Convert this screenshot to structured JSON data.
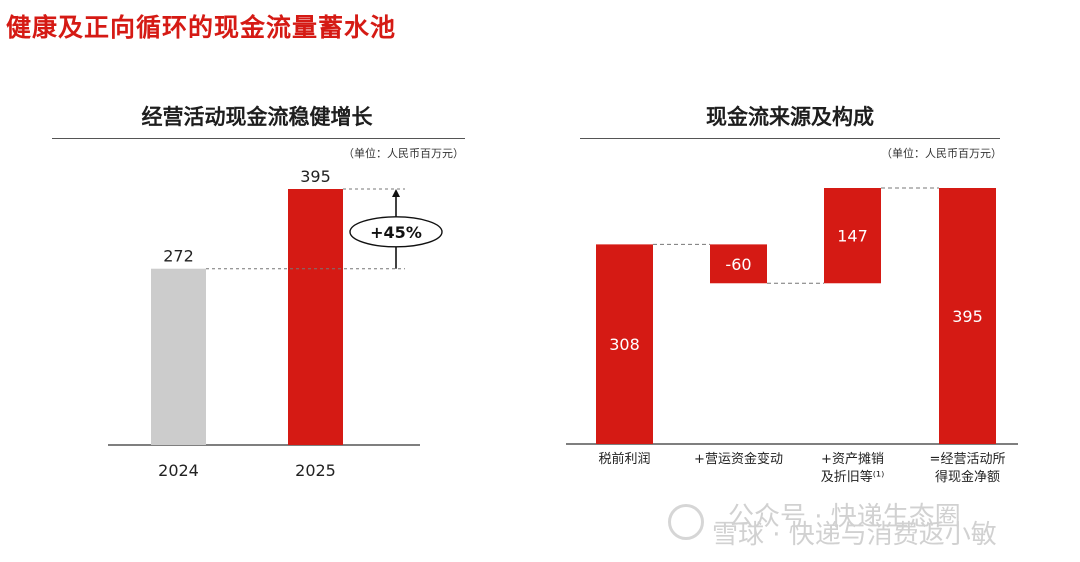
{
  "page": {
    "title": "健康及正向循环的现金流量蓄水池"
  },
  "left_panel": {
    "title": "经营活动现金流稳健增长",
    "unit": "（单位：人民币百万元）"
  },
  "right_panel": {
    "title": "现金流来源及构成",
    "unit": "（单位：人民币百万元）"
  },
  "watermark": {
    "line1": "公众号 · 快递生态圈",
    "line2": "雪球 · 快递与消费返小敏"
  },
  "chart_data": [
    {
      "type": "bar",
      "title": "经营活动现金流稳健增长",
      "unit": "（单位：人民币百万元）",
      "categories": [
        "2024",
        "2025"
      ],
      "values": [
        272,
        395
      ],
      "value_labels": [
        "272",
        "395"
      ],
      "colors": [
        "#cccccc",
        "#d51a14"
      ],
      "annotation": {
        "text": "+45%",
        "from_value": 272,
        "to_value": 395
      },
      "ylim": [
        0,
        395
      ],
      "xlabel": "",
      "ylabel": ""
    },
    {
      "type": "bar",
      "subtype": "waterfall",
      "title": "现金流来源及构成",
      "unit": "（单位：人民币百万元）",
      "categories": [
        [
          "税前利润"
        ],
        [
          "+营运资金变动"
        ],
        [
          "+资产摊销",
          "及折旧等⁽¹⁾"
        ],
        [
          "=经营活动所",
          "得现金净额"
        ]
      ],
      "steps": [
        {
          "label": "308",
          "base": 0,
          "top": 308
        },
        {
          "label": "-60",
          "base": 248,
          "top": 308
        },
        {
          "label": "147",
          "base": 248,
          "top": 395
        },
        {
          "label": "395",
          "base": 0,
          "top": 395
        }
      ],
      "color": "#d51a14",
      "ylim": [
        0,
        395
      ],
      "xlabel": "",
      "ylabel": ""
    }
  ]
}
